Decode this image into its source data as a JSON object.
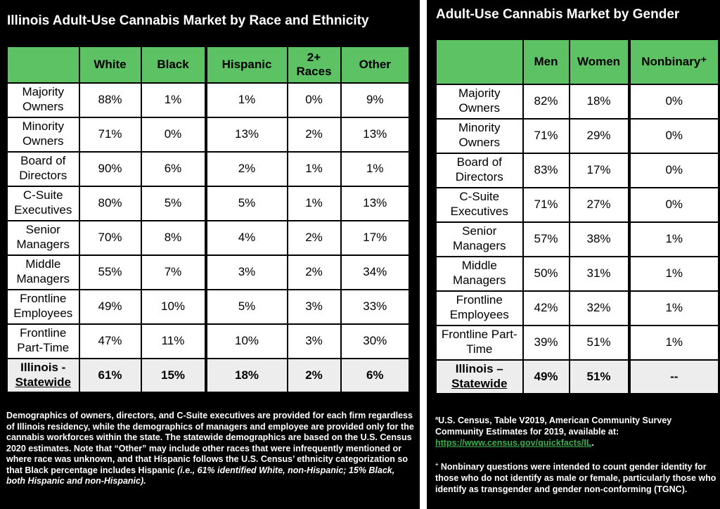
{
  "colors": {
    "header_green": "#5cc264",
    "link_green": "#3cae4c",
    "panel_bg": "#000000",
    "statewide_row_bg": "#ededed"
  },
  "left_panel": {
    "title": "Illinois Adult-Use Cannabis Market by Race and Ethnicity",
    "table": {
      "columns": [
        "",
        "White",
        "Black",
        "Hispanic",
        "2+ Races",
        "Other"
      ],
      "rows": [
        {
          "label": "Majority Owners",
          "values": [
            "88%",
            "1%",
            "1%",
            "0%",
            "9%"
          ]
        },
        {
          "label": "Minority Owners",
          "values": [
            "71%",
            "0%",
            "13%",
            "2%",
            "13%"
          ]
        },
        {
          "label": "Board of Directors",
          "values": [
            "90%",
            "6%",
            "2%",
            "1%",
            "1%"
          ]
        },
        {
          "label": "C-Suite Executives",
          "values": [
            "80%",
            "5%",
            "5%",
            "1%",
            "13%"
          ]
        },
        {
          "label": "Senior Managers",
          "values": [
            "70%",
            "8%",
            "4%",
            "2%",
            "17%"
          ]
        },
        {
          "label": "Middle Managers",
          "values": [
            "55%",
            "7%",
            "3%",
            "2%",
            "34%"
          ]
        },
        {
          "label": "Frontline Employees",
          "values": [
            "49%",
            "10%",
            "5%",
            "3%",
            "33%"
          ]
        },
        {
          "label": "Frontline Part-Time",
          "values": [
            "47%",
            "11%",
            "10%",
            "3%",
            "30%"
          ]
        },
        {
          "label": "Illinois -",
          "label_underlined": "Statewide",
          "highlight": true,
          "values": [
            "61%",
            "15%",
            "18%",
            "2%",
            "6%"
          ]
        }
      ]
    },
    "footnote": {
      "text": "Demographics of owners, directors, and C-Suite executives are provided for each firm regardless of Illinois residency, while the demographics of managers and employee are provided only for the cannabis workforces within the state. The statewide demographics are based on the U.S. Census 2020 estimates. Note that “Other” may include other races that were infrequently mentioned or where race was unknown, and that Hispanic follows the U.S. Census’ ethnicity categorization so that Black percentage includes Hispanic ",
      "italic": "(i.e., 61% identified White, non-Hispanic; 15% Black, both Hispanic and non-Hispanic)."
    }
  },
  "right_panel": {
    "title": "Adult-Use Cannabis Market by Gender",
    "table": {
      "columns": [
        "",
        "Men",
        "Women",
        "Nonbinary⁺"
      ],
      "rows": [
        {
          "label": "Majority Owners",
          "values": [
            "82%",
            "18%",
            "0%"
          ]
        },
        {
          "label": "Minority Owners",
          "values": [
            "71%",
            "29%",
            "0%"
          ]
        },
        {
          "label": "Board of Directors",
          "values": [
            "83%",
            "17%",
            "0%"
          ]
        },
        {
          "label": "C-Suite Executives",
          "values": [
            "71%",
            "27%",
            "0%"
          ]
        },
        {
          "label": "Senior Managers",
          "values": [
            "57%",
            "38%",
            "1%"
          ]
        },
        {
          "label": "Middle Managers",
          "values": [
            "50%",
            "31%",
            "1%"
          ]
        },
        {
          "label": "Frontline Employees",
          "values": [
            "42%",
            "32%",
            "1%"
          ]
        },
        {
          "label": "Frontline Part-Time",
          "values": [
            "39%",
            "51%",
            "1%"
          ]
        },
        {
          "label": "Illinois –",
          "label_underlined": "Statewide",
          "highlight": true,
          "values": [
            "49%",
            "51%",
            "--"
          ]
        }
      ]
    },
    "footnote_census": {
      "sup": "a",
      "text": "U.S. Census, Table V2019, American Community Survey Community Estimates for 2019, available at:",
      "link": "https://www.census.gov/quickfacts/IL",
      "after_link": "."
    },
    "footnote_nonbinary": {
      "sup": "+",
      "text": "Nonbinary questions were intended to count gender identity for those who do not identify as male or female, particularly those who identify as transgender and gender non-conforming (TGNC)."
    }
  }
}
